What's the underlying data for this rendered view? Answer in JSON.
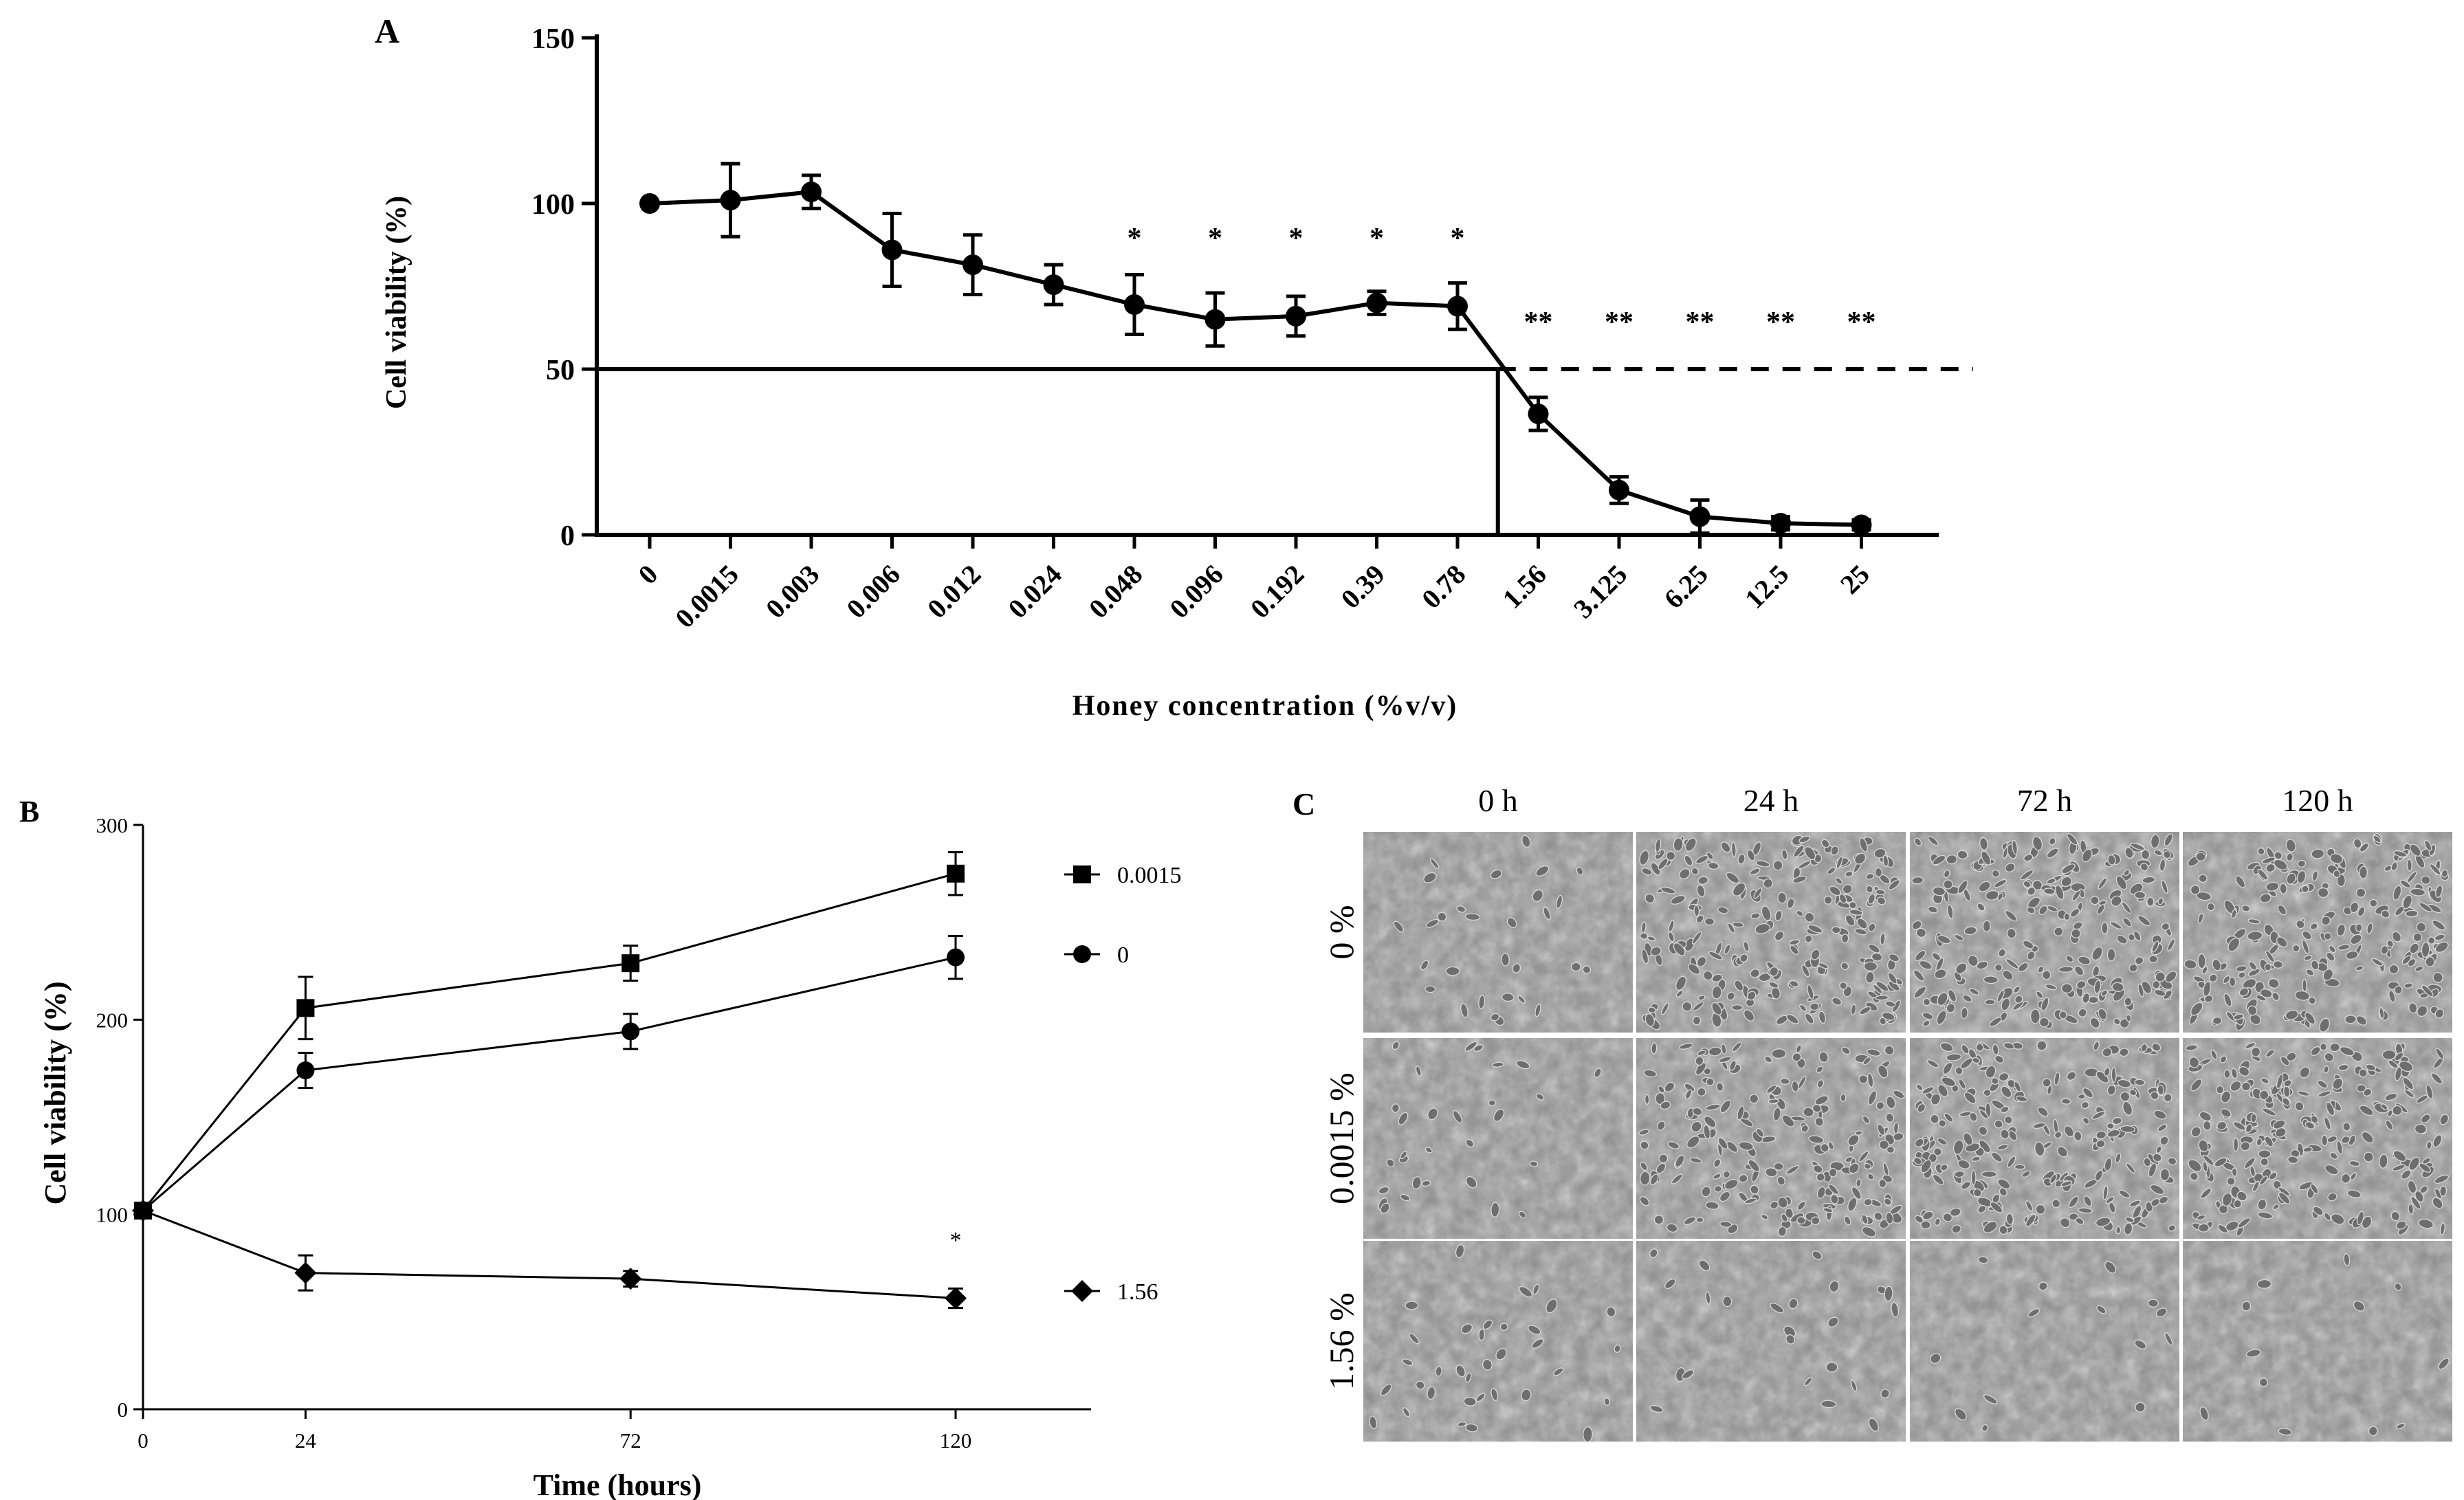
{
  "figure": {
    "panels": [
      "A",
      "B",
      "C"
    ]
  },
  "chart_data": [
    {
      "panel": "A",
      "type": "line",
      "title": "",
      "xlabel": "Honey concentration (%v/v)",
      "ylabel": "Cell viability (%)",
      "ylim": [
        0,
        150
      ],
      "yticks": [
        "0",
        "50",
        "100",
        "150"
      ],
      "categories": [
        "0",
        "0.0015",
        "0.003",
        "0.006",
        "0.012",
        "0.024",
        "0.048",
        "0.096",
        "0.192",
        "0.39",
        "0.78",
        "1.56",
        "3.125",
        "6.25",
        "12.5",
        "25"
      ],
      "values": [
        100,
        101,
        103.5,
        86,
        81.5,
        75.5,
        69.5,
        65,
        66,
        70,
        69,
        36.5,
        13.5,
        5.5,
        3.5,
        3
      ],
      "errors": [
        1,
        11,
        5,
        11,
        9,
        6,
        9,
        8,
        6,
        3.5,
        7,
        5,
        4,
        5,
        2,
        1.5
      ],
      "annotations": [
        "",
        "",
        "",
        "",
        "",
        "",
        "*",
        "*",
        "*",
        "*",
        "*",
        "**",
        "**",
        "**",
        "**",
        "**"
      ],
      "threshold": {
        "y": 50,
        "x_intercept_index": 10.5
      }
    },
    {
      "panel": "B",
      "type": "line",
      "title": "",
      "xlabel": "Time (hours)",
      "ylabel": "Cell viability (%)",
      "ylim": [
        0,
        300
      ],
      "xlim": [
        0,
        140
      ],
      "yticks": [
        "0",
        "100",
        "200",
        "300"
      ],
      "xticks": [
        "0",
        "24",
        "72",
        "120"
      ],
      "x": [
        0,
        24,
        72,
        120
      ],
      "series": [
        {
          "name": "0.0015",
          "marker": "square",
          "values": [
            102,
            206,
            229,
            275
          ],
          "errors": [
            4,
            16,
            9,
            11
          ]
        },
        {
          "name": "0",
          "marker": "circle",
          "values": [
            102,
            174,
            194,
            232
          ],
          "errors": [
            4,
            9,
            9,
            11
          ]
        },
        {
          "name": "1.56",
          "marker": "diamond",
          "values": [
            102,
            70,
            67,
            57
          ],
          "errors": [
            4,
            9,
            4,
            5
          ]
        }
      ],
      "annotations": [
        {
          "x": 120,
          "text": "*"
        }
      ]
    }
  ],
  "panel_c": {
    "label": "C",
    "columns": [
      "0 h",
      "24 h",
      "72 h",
      "120 h"
    ],
    "rows": [
      "0 %",
      "0.0015 %",
      "1.56 %"
    ]
  }
}
